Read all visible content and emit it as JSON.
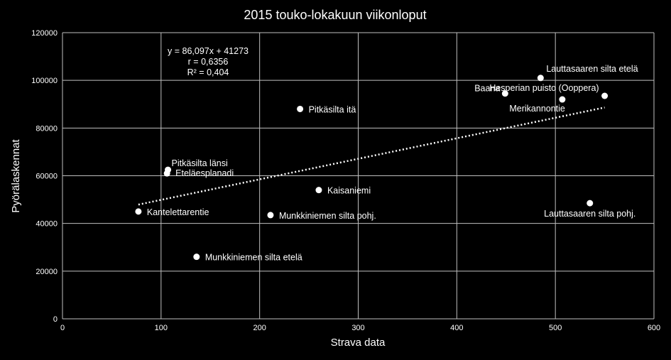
{
  "chart_data": {
    "type": "scatter",
    "title": "2015 touko-lokakuun viikonloput",
    "xlabel": "Strava data",
    "ylabel": "Pyörälaskennat",
    "xlim": [
      0,
      600
    ],
    "ylim": [
      0,
      120000
    ],
    "x_ticks": [
      0,
      100,
      200,
      300,
      400,
      500,
      600
    ],
    "y_ticks": [
      0,
      20000,
      40000,
      60000,
      80000,
      100000,
      120000
    ],
    "grid": true,
    "legend": "none",
    "marker_color": "#ffffff",
    "points": [
      {
        "label": "Kantelettarentie",
        "x": 77,
        "y": 45000
      },
      {
        "label": "Pitkäsilta länsi",
        "x": 107,
        "y": 62500
      },
      {
        "label": "Eteläesplanadi",
        "x": 106,
        "y": 61000
      },
      {
        "label": "Munkkiniemen silta etelä",
        "x": 136,
        "y": 26000
      },
      {
        "label": "Munkkiniemen silta pohj.",
        "x": 211,
        "y": 43500
      },
      {
        "label": "Pitkäsilta itä",
        "x": 241,
        "y": 88000
      },
      {
        "label": "Kaisaniemi",
        "x": 260,
        "y": 54000
      },
      {
        "label": "Baana",
        "x": 449,
        "y": 94500
      },
      {
        "label": "Lauttasaaren silta etelä",
        "x": 485,
        "y": 101000
      },
      {
        "label": "Merikannontie",
        "x": 507,
        "y": 92000
      },
      {
        "label": "Hesperian puisto (Ooppera)",
        "x": 550,
        "y": 93500
      },
      {
        "label": "Lauttasaaren silta pohj.",
        "x": 535,
        "y": 48500
      }
    ],
    "trendline": {
      "style": "dotted",
      "slope": 86.097,
      "intercept": 41273,
      "x_range": [
        77,
        550
      ],
      "equation_lines": [
        "y = 86,097x + 41273",
        "r = 0,6356",
        "R² = 0,404"
      ]
    }
  }
}
